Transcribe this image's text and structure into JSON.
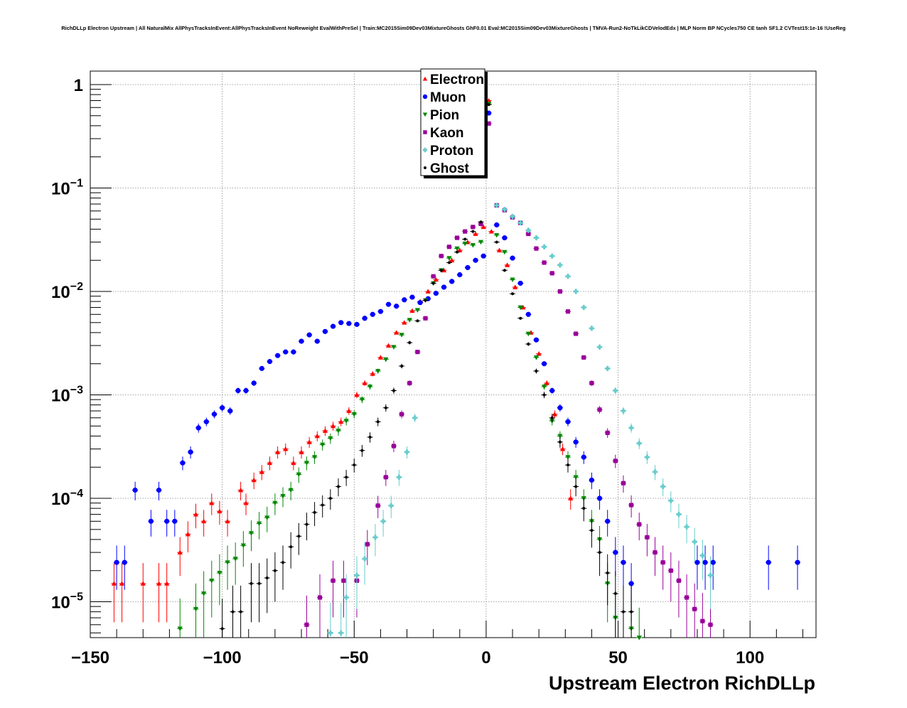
{
  "chart_data": {
    "type": "scatter",
    "title": "RichDLLp Electron Upstream | All NaturalMix AllPhysTracksInEvent:AllPhysTracksInEvent NoReweight EvalWithPreSel | Train:MC2015Sim09Dev03MixtureGhosts GhF0.01 Eval:MC2015Sim09Dev03MixtureGhosts | TMVA-Run2-NoTkLikCDVelodEdx | MLP Norm BP NCycles750 CE tanh SF1.2 CVTest15:1e-16 !UseReg",
    "xlabel": "Upstream Electron RichDLLp",
    "ylabel": "",
    "xlim": [
      -150,
      125
    ],
    "ylim": [
      4.5e-06,
      1.35
    ],
    "yscale": "log",
    "grid": true,
    "legend_position": "top-center",
    "x_ticks": [
      {
        "value": -150,
        "label": "−150"
      },
      {
        "value": -100,
        "label": "−100"
      },
      {
        "value": -50,
        "label": "−50"
      },
      {
        "value": 0,
        "label": "0"
      },
      {
        "value": 50,
        "label": "50"
      },
      {
        "value": 100,
        "label": "100"
      }
    ],
    "y_ticks": [
      {
        "value": 1,
        "base": "1",
        "exp": ""
      },
      {
        "value": 0.1,
        "base": "10",
        "exp": "−1"
      },
      {
        "value": 0.01,
        "base": "10",
        "exp": "−2"
      },
      {
        "value": 0.001,
        "base": "10",
        "exp": "−3"
      },
      {
        "value": 0.0001,
        "base": "10",
        "exp": "−4"
      },
      {
        "value": 1e-05,
        "base": "10",
        "exp": "−5"
      }
    ],
    "series": [
      {
        "name": "Electron",
        "color": "#ff0000",
        "marker": "triangle-up",
        "x": [
          -141,
          -138,
          -130,
          -124,
          -121,
          -116,
          -113,
          -110,
          -107,
          -104,
          -101,
          -98,
          -93,
          -91,
          -88,
          -85,
          -82,
          -79,
          -76,
          -73,
          -70,
          -67,
          -64,
          -61,
          -58,
          -55,
          -52,
          -49,
          -46,
          -43,
          -40,
          -37,
          -34,
          -31,
          -28,
          -25,
          -22,
          -19,
          -16,
          -13,
          -10,
          -7,
          -4,
          -1,
          1,
          2,
          5,
          8,
          11,
          14,
          17,
          20,
          23,
          26,
          29,
          32
        ],
        "y": [
          1.5e-05,
          1.5e-05,
          1.5e-05,
          1.5e-05,
          1.5e-05,
          3e-05,
          4.5e-05,
          7e-05,
          6e-05,
          9e-05,
          7.5e-05,
          6e-05,
          0.00012,
          9e-05,
          0.00015,
          0.00018,
          0.00022,
          0.00028,
          0.0003,
          0.00022,
          0.00028,
          0.00035,
          0.0004,
          0.00045,
          0.0005,
          0.00055,
          0.0007,
          0.001,
          0.0013,
          0.0016,
          0.0023,
          0.003,
          0.004,
          0.005,
          0.0065,
          0.008,
          0.01,
          0.013,
          0.016,
          0.02,
          0.025,
          0.03,
          0.036,
          0.042,
          0.7,
          0.038,
          0.025,
          0.018,
          0.011,
          0.007,
          0.004,
          0.0025,
          0.0013,
          0.00065,
          0.0003,
          0.0001
        ]
      },
      {
        "name": "Muon",
        "color": "#0000ff",
        "marker": "circle",
        "x": [
          -140,
          -137,
          -133,
          -127,
          -124,
          -121,
          -118,
          -115,
          -112,
          -109,
          -106,
          -103,
          -100,
          -97,
          -94,
          -91,
          -88,
          -85,
          -82,
          -79,
          -76,
          -73,
          -70,
          -67,
          -64,
          -61,
          -58,
          -55,
          -52,
          -49,
          -46,
          -43,
          -40,
          -37,
          -34,
          -31,
          -28,
          -25,
          -22,
          -19,
          -16,
          -13,
          -10,
          -7,
          -4,
          -1,
          1,
          4,
          7,
          10,
          13,
          16,
          19,
          22,
          25,
          28,
          31,
          34,
          37,
          40,
          43,
          46,
          49,
          52,
          55,
          80,
          83,
          86,
          107,
          118
        ],
        "y": [
          2.4e-05,
          2.4e-05,
          0.00012,
          6e-05,
          0.00012,
          6e-05,
          6e-05,
          0.00022,
          0.00028,
          0.00048,
          0.00055,
          0.00065,
          0.00075,
          0.0007,
          0.0011,
          0.0011,
          0.0013,
          0.0018,
          0.0021,
          0.0024,
          0.0026,
          0.0026,
          0.0033,
          0.0038,
          0.0033,
          0.0041,
          0.0046,
          0.005,
          0.0049,
          0.0048,
          0.0055,
          0.006,
          0.0064,
          0.0075,
          0.0072,
          0.0083,
          0.0088,
          0.0078,
          0.0085,
          0.0096,
          0.011,
          0.0125,
          0.0145,
          0.017,
          0.02,
          0.022,
          0.53,
          0.044,
          0.033,
          0.021,
          0.012,
          0.006,
          0.0034,
          0.002,
          0.0011,
          0.00075,
          0.00055,
          0.00035,
          0.00025,
          0.00015,
          0.0001,
          6e-05,
          3e-05,
          2.4e-05,
          1.5e-05,
          2.4e-05,
          2.4e-05,
          2.4e-05,
          2.4e-05,
          2.4e-05
        ]
      },
      {
        "name": "Pion",
        "color": "#008800",
        "marker": "triangle-down",
        "x": [
          -116,
          -110,
          -107,
          -104,
          -101,
          -98,
          -95,
          -92,
          -89,
          -86,
          -83,
          -80,
          -77,
          -74,
          -71,
          -68,
          -65,
          -62,
          -59,
          -56,
          -53,
          -50,
          -47,
          -44,
          -41,
          -38,
          -35,
          -32,
          -29,
          -26,
          -23,
          -20,
          -17,
          -14,
          -11,
          -8,
          -5,
          -2,
          1,
          4,
          7,
          10,
          13,
          16,
          19,
          22,
          25,
          28,
          31,
          34,
          37,
          40,
          43,
          46,
          49,
          52,
          55,
          58
        ],
        "y": [
          5.5e-06,
          8.5e-06,
          1.2e-05,
          1.6e-05,
          1.9e-05,
          2.4e-05,
          2.6e-05,
          3.5e-05,
          4.6e-05,
          5.7e-05,
          6.5e-05,
          9e-05,
          0.000105,
          0.00012,
          0.00017,
          0.00022,
          0.00025,
          0.00033,
          0.00038,
          0.00045,
          0.00056,
          0.00065,
          0.0009,
          0.0012,
          0.0017,
          0.0022,
          0.0029,
          0.0038,
          0.0053,
          0.0066,
          0.0082,
          0.012,
          0.016,
          0.021,
          0.026,
          0.029,
          0.028,
          0.03,
          0.65,
          0.035,
          0.024,
          0.013,
          0.007,
          0.0039,
          0.0023,
          0.0012,
          0.00056,
          0.0004,
          0.00025,
          0.00016,
          0.0001,
          6e-05,
          4e-05,
          1.5e-05,
          7e-06,
          4e-06,
          5.5e-06,
          4.5e-06
        ]
      },
      {
        "name": "Kaon",
        "color": "#990099",
        "marker": "square",
        "x": [
          -68,
          -63,
          -58,
          -54,
          -49,
          -45,
          -41,
          -38,
          -35,
          -32,
          -29,
          -26,
          -23,
          -20,
          -17,
          -14,
          -11,
          -8,
          -5,
          -2,
          1,
          4,
          7,
          10,
          13,
          16,
          19,
          22,
          25,
          28,
          31,
          34,
          37,
          40,
          43,
          46,
          49,
          52,
          55,
          58,
          61,
          64,
          67,
          70,
          73,
          76,
          79,
          82,
          85
        ],
        "y": [
          6e-06,
          1.1e-05,
          1.6e-05,
          1.6e-05,
          1.6e-05,
          3.6e-05,
          8.5e-05,
          0.00016,
          0.00032,
          0.00065,
          0.0013,
          0.0026,
          0.0055,
          0.014,
          0.022,
          0.027,
          0.033,
          0.038,
          0.042,
          0.045,
          0.42,
          0.068,
          0.061,
          0.052,
          0.046,
          0.036,
          0.026,
          0.019,
          0.015,
          0.01,
          0.0064,
          0.0039,
          0.0023,
          0.0013,
          0.00072,
          0.00043,
          0.00023,
          0.00014,
          8.6e-05,
          5.6e-05,
          4.2e-05,
          3e-05,
          2.4e-05,
          2e-05,
          1.6e-05,
          1.1e-05,
          8.5e-06,
          6.5e-06,
          6e-06
        ]
      },
      {
        "name": "Proton",
        "color": "#66cccc",
        "marker": "cross",
        "x": [
          -59,
          -55,
          -53,
          -49,
          -46,
          -42,
          -39,
          -36,
          -33,
          -30,
          -27,
          4,
          7,
          10,
          13,
          16,
          19,
          22,
          25,
          28,
          31,
          34,
          37,
          40,
          43,
          46,
          49,
          52,
          55,
          58,
          61,
          64,
          67,
          70,
          73,
          76,
          79,
          82,
          85
        ],
        "y": [
          5e-06,
          5e-06,
          1.1e-05,
          1.8e-05,
          2.6e-05,
          4.2e-05,
          6e-05,
          8.5e-05,
          0.00016,
          0.00028,
          0.0006,
          0.068,
          0.062,
          0.053,
          0.046,
          0.039,
          0.033,
          0.027,
          0.022,
          0.018,
          0.014,
          0.01,
          0.007,
          0.0044,
          0.0029,
          0.0018,
          0.0011,
          0.0007,
          0.00048,
          0.00034,
          0.00025,
          0.00018,
          0.00013,
          9.5e-05,
          7e-05,
          5.3e-05,
          3.8e-05,
          2.8e-05,
          1.8e-05
        ]
      },
      {
        "name": "Ghost",
        "color": "#000000",
        "marker": "dot",
        "x": [
          -100,
          -96,
          -93,
          -89,
          -86,
          -83,
          -80,
          -77,
          -74,
          -71,
          -68,
          -65,
          -62,
          -59,
          -56,
          -53,
          -50,
          -47,
          -44,
          -41,
          -38,
          -35,
          -32,
          -29,
          -26,
          -23,
          -20,
          -17,
          -14,
          -11,
          -8,
          -5,
          -2,
          1,
          4,
          7,
          10,
          13,
          16,
          19,
          22,
          25,
          28,
          31,
          34,
          37,
          40,
          43,
          46,
          49,
          52,
          55
        ],
        "y": [
          5.5e-06,
          8e-06,
          8e-06,
          1.5e-05,
          1.5e-05,
          1.7e-05,
          2e-05,
          2.4e-05,
          3.4e-05,
          4.3e-05,
          5.6e-05,
          7.3e-05,
          8.6e-05,
          0.0001,
          0.00013,
          0.00016,
          0.00021,
          0.00029,
          0.00039,
          0.00055,
          0.00075,
          0.0011,
          0.0019,
          0.0032,
          0.0052,
          0.0082,
          0.012,
          0.016,
          0.019,
          0.024,
          0.032,
          0.038,
          0.047,
          0.64,
          0.03,
          0.016,
          0.0095,
          0.0055,
          0.0031,
          0.0017,
          0.001,
          0.0006,
          0.00035,
          0.00021,
          0.00013,
          8e-05,
          4.9e-05,
          3e-05,
          1.9e-05,
          1.2e-05,
          8e-06,
          8e-06
        ]
      }
    ]
  }
}
